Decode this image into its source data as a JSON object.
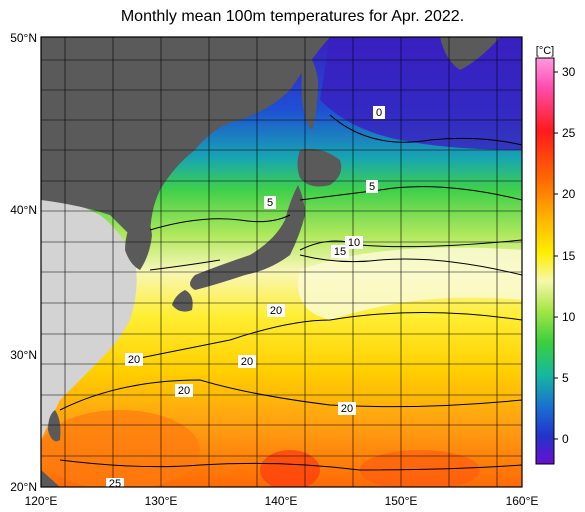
{
  "title": "Monthly mean 100m temperatures for Apr. 2022.",
  "lat_labels": [
    "50°N",
    "40°N",
    "30°N",
    "20°N"
  ],
  "lon_labels": [
    "120°E",
    "130°E",
    "140°E",
    "150°E",
    "160°E"
  ],
  "colorbar": {
    "unit": "[°C]",
    "ticks": [
      "30",
      "25",
      "20",
      "15",
      "10",
      "5",
      "0"
    ],
    "colors": [
      "#ff66cc",
      "#ff1a1a",
      "#ff6a00",
      "#ffb000",
      "#ffee00",
      "#f7f7aa",
      "#a8e64a",
      "#3ccf3c",
      "#16b8a0",
      "#1a6fd1",
      "#2233cc",
      "#3b1fb8",
      "#6a0fd0"
    ]
  },
  "contour_labels": [
    "0",
    "5",
    "5",
    "10",
    "15",
    "20",
    "20",
    "20",
    "20",
    "25"
  ],
  "colors": {
    "land": "#5a5a5a",
    "land_outside": "#d3d3d3",
    "grid": "#000000"
  }
}
